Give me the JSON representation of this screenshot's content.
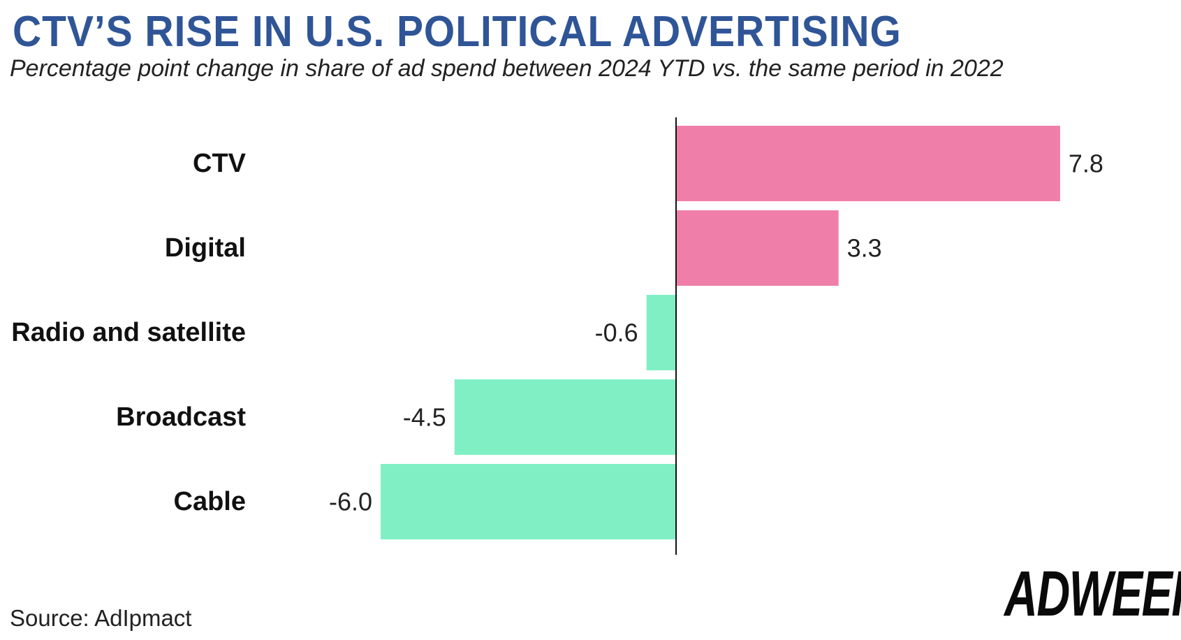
{
  "chart_data": {
    "type": "bar",
    "orientation": "horizontal",
    "title": "CTV’S RISE IN U.S. POLITICAL ADVERTISING",
    "subtitle": "Percentage point change in share of ad spend between 2024 YTD vs. the same period in 2022",
    "categories": [
      "CTV",
      "Digital",
      "Radio and satellite",
      "Broadcast",
      "Cable"
    ],
    "values": [
      7.8,
      3.3,
      -0.6,
      -4.5,
      -6.0
    ],
    "value_labels": [
      "7.8",
      "3.3",
      "-0.6",
      "-4.5",
      "-6.0"
    ],
    "xlabel": "",
    "ylabel": "",
    "xlim": [
      -6.0,
      7.8
    ],
    "grid": false,
    "colors": {
      "positive": "#ef7fa8",
      "negative": "#80f0c4",
      "title": "#2f5597"
    },
    "source": "Source: AdIpmact",
    "logo": "ADWEEK"
  }
}
